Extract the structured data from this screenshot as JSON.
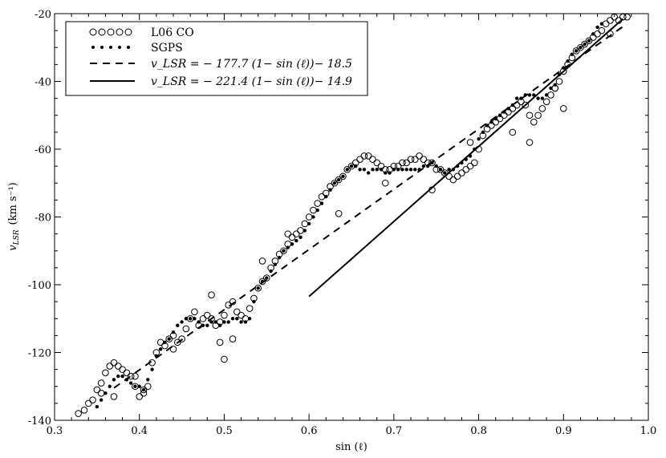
{
  "chart_data": {
    "type": "scatter",
    "xlabel": "sin (ℓ)",
    "ylabel_main": "v",
    "ylabel_sub": "LSR",
    "ylabel_unit": "(km s⁻¹)",
    "xlim": [
      0.3,
      1.0
    ],
    "ylim": [
      -140,
      -20
    ],
    "x_ticks": [
      "0.3",
      "0.4",
      "0.5",
      "0.6",
      "0.7",
      "0.8",
      "0.9",
      "1.0"
    ],
    "y_ticks": [
      "-140",
      "-120",
      "-100",
      "-80",
      "-60",
      "-40",
      "-20"
    ],
    "legend_position": "top-left",
    "legend": [
      {
        "label": "L06 CO",
        "marker": "open-circle"
      },
      {
        "label": "SGPS",
        "marker": "filled-dot"
      },
      {
        "label": "v_LSR = − 177.7 (1− sin (ℓ))− 18.5",
        "marker": "dashed-line"
      },
      {
        "label": "v_LSR = − 221.4 (1− sin (ℓ))− 14.9",
        "marker": "solid-line"
      }
    ],
    "fits": [
      {
        "name": "dashed",
        "slope": 177.7,
        "intercept": -18.5,
        "style": "dashed",
        "x_range": [
          0.37,
          0.97
        ]
      },
      {
        "name": "solid",
        "slope": 221.4,
        "intercept": -14.9,
        "style": "solid",
        "x_range": [
          0.6,
          0.97
        ]
      }
    ],
    "series": [
      {
        "name": "L06 CO",
        "x": [
          0.328,
          0.335,
          0.34,
          0.345,
          0.35,
          0.355,
          0.36,
          0.365,
          0.37,
          0.375,
          0.38,
          0.385,
          0.39,
          0.395,
          0.4,
          0.405,
          0.41,
          0.415,
          0.42,
          0.425,
          0.43,
          0.435,
          0.44,
          0.445,
          0.45,
          0.455,
          0.46,
          0.465,
          0.47,
          0.475,
          0.48,
          0.485,
          0.49,
          0.495,
          0.5,
          0.505,
          0.51,
          0.515,
          0.52,
          0.525,
          0.53,
          0.535,
          0.54,
          0.545,
          0.55,
          0.555,
          0.56,
          0.565,
          0.57,
          0.575,
          0.58,
          0.585,
          0.59,
          0.595,
          0.6,
          0.605,
          0.61,
          0.615,
          0.62,
          0.625,
          0.63,
          0.635,
          0.64,
          0.645,
          0.65,
          0.655,
          0.66,
          0.665,
          0.67,
          0.675,
          0.68,
          0.685,
          0.69,
          0.695,
          0.7,
          0.705,
          0.71,
          0.715,
          0.72,
          0.725,
          0.73,
          0.735,
          0.74,
          0.745,
          0.75,
          0.755,
          0.76,
          0.765,
          0.77,
          0.775,
          0.78,
          0.785,
          0.79,
          0.795,
          0.8,
          0.805,
          0.81,
          0.815,
          0.82,
          0.825,
          0.83,
          0.835,
          0.84,
          0.845,
          0.85,
          0.855,
          0.86,
          0.865,
          0.87,
          0.875,
          0.88,
          0.885,
          0.89,
          0.895,
          0.9,
          0.905,
          0.91,
          0.915,
          0.92,
          0.925,
          0.93,
          0.935,
          0.94,
          0.945,
          0.95,
          0.955,
          0.96,
          0.965,
          0.97,
          0.975,
          0.355,
          0.395,
          0.44,
          0.5,
          0.545,
          0.575,
          0.635,
          0.69,
          0.745,
          0.79,
          0.84,
          0.86,
          0.89,
          0.9,
          0.955,
          0.37,
          0.405,
          0.485,
          0.495,
          0.51
        ],
        "y": [
          -138,
          -137,
          -135,
          -134,
          -131,
          -129,
          -126,
          -124,
          -123,
          -124,
          -125,
          -126,
          -127,
          -130,
          -133,
          -131,
          -130,
          -123,
          -120,
          -117,
          -118,
          -116,
          -115,
          -117,
          -116,
          -113,
          -110,
          -108,
          -112,
          -110,
          -109,
          -110,
          -112,
          -111,
          -109,
          -106,
          -105,
          -108,
          -109,
          -110,
          -107,
          -104,
          -101,
          -99,
          -98,
          -95,
          -93,
          -91,
          -90,
          -88,
          -86,
          -85,
          -84,
          -82,
          -80,
          -78,
          -76,
          -74,
          -73,
          -71,
          -70,
          -69,
          -68,
          -66,
          -65,
          -64,
          -63,
          -62,
          -62,
          -63,
          -64,
          -65,
          -66,
          -66,
          -65,
          -65,
          -64,
          -64,
          -63,
          -63,
          -62,
          -63,
          -64,
          -64,
          -66,
          -66,
          -67,
          -68,
          -69,
          -68,
          -67,
          -66,
          -65,
          -64,
          -60,
          -56,
          -54,
          -53,
          -52,
          -51,
          -50,
          -49,
          -48,
          -47,
          -46,
          -47,
          -50,
          -52,
          -50,
          -48,
          -46,
          -44,
          -42,
          -40,
          -37,
          -35,
          -33,
          -31,
          -30,
          -29,
          -28,
          -27,
          -26,
          -25,
          -23,
          -22,
          -21,
          -22,
          -21,
          -21,
          -132,
          -127,
          -119,
          -122,
          -93,
          -85,
          -79,
          -70,
          -72,
          -58,
          -55,
          -58,
          -42,
          -48,
          -26,
          -133,
          -132,
          -103,
          -117,
          -116
        ]
      },
      {
        "name": "SGPS",
        "x": [
          0.35,
          0.355,
          0.36,
          0.365,
          0.37,
          0.375,
          0.38,
          0.385,
          0.39,
          0.395,
          0.4,
          0.405,
          0.41,
          0.415,
          0.42,
          0.425,
          0.43,
          0.435,
          0.44,
          0.445,
          0.45,
          0.455,
          0.46,
          0.465,
          0.47,
          0.475,
          0.48,
          0.485,
          0.49,
          0.495,
          0.5,
          0.505,
          0.51,
          0.515,
          0.52,
          0.525,
          0.53,
          0.535,
          0.54,
          0.545,
          0.55,
          0.555,
          0.56,
          0.565,
          0.57,
          0.575,
          0.58,
          0.585,
          0.59,
          0.595,
          0.6,
          0.605,
          0.61,
          0.615,
          0.62,
          0.625,
          0.63,
          0.635,
          0.64,
          0.645,
          0.65,
          0.655,
          0.66,
          0.665,
          0.67,
          0.675,
          0.68,
          0.685,
          0.69,
          0.695,
          0.7,
          0.705,
          0.71,
          0.715,
          0.72,
          0.725,
          0.73,
          0.735,
          0.74,
          0.745,
          0.75,
          0.755,
          0.76,
          0.765,
          0.77,
          0.775,
          0.78,
          0.785,
          0.79,
          0.795,
          0.8,
          0.805,
          0.81,
          0.815,
          0.82,
          0.825,
          0.83,
          0.835,
          0.84,
          0.845,
          0.85,
          0.855,
          0.86,
          0.865,
          0.87,
          0.875,
          0.88,
          0.885,
          0.89,
          0.895,
          0.9,
          0.905,
          0.91,
          0.915,
          0.92,
          0.925,
          0.93,
          0.935,
          0.94,
          0.945
        ],
        "y": [
          -136,
          -134,
          -132,
          -130,
          -128,
          -127,
          -127,
          -128,
          -129,
          -130,
          -130,
          -131,
          -128,
          -125,
          -121,
          -119,
          -117,
          -116,
          -114,
          -112,
          -111,
          -110,
          -110,
          -110,
          -111,
          -112,
          -112,
          -111,
          -111,
          -112,
          -111,
          -111,
          -110,
          -110,
          -111,
          -111,
          -110,
          -105,
          -101,
          -99,
          -98,
          -96,
          -94,
          -92,
          -90,
          -89,
          -88,
          -87,
          -86,
          -84,
          -82,
          -80,
          -78,
          -76,
          -74,
          -72,
          -70,
          -69,
          -68,
          -66,
          -65,
          -65,
          -66,
          -66,
          -67,
          -66,
          -66,
          -66,
          -67,
          -67,
          -66,
          -66,
          -66,
          -66,
          -66,
          -66,
          -66,
          -65,
          -65,
          -64,
          -65,
          -66,
          -67,
          -66,
          -66,
          -65,
          -64,
          -63,
          -62,
          -60,
          -57,
          -55,
          -53,
          -52,
          -51,
          -50,
          -49,
          -48,
          -47,
          -45,
          -45,
          -44,
          -44,
          -44,
          -45,
          -45,
          -44,
          -42,
          -41,
          -38,
          -36,
          -34,
          -32,
          -31,
          -30,
          -29,
          -28,
          -26,
          -24,
          -23
        ]
      }
    ]
  }
}
